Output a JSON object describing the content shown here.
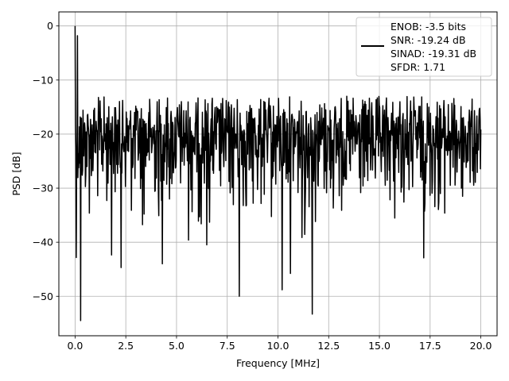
{
  "chart_data": {
    "type": "line",
    "title": "",
    "xlabel": "Frequency [MHz]",
    "ylabel": "PSD [dB]",
    "xlim": [
      -0.8,
      20.8
    ],
    "ylim": [
      -57.3,
      2.6
    ],
    "xticks": [
      0.0,
      2.5,
      5.0,
      7.5,
      10.0,
      12.5,
      15.0,
      17.5,
      20.0
    ],
    "xtick_labels": [
      "0.0",
      "2.5",
      "5.0",
      "7.5",
      "10.0",
      "12.5",
      "15.0",
      "17.5",
      "20.0"
    ],
    "yticks": [
      0,
      -10,
      -20,
      -30,
      -40,
      -50
    ],
    "ytick_labels": [
      "0",
      "−10",
      "−20",
      "−30",
      "−40",
      "−50"
    ],
    "grid": true,
    "legend_position": "upper right",
    "line_color": "#000000",
    "series": [
      {
        "name": "ENOB: -3.5 bits\nSNR: -19.24 dB\nSINAD: -19.31 dB\nSFDR: 1.71",
        "x_start": 0.0,
        "x_end": 20.0,
        "points": 1024,
        "peak_value": 0.0,
        "noise_floor_mean": -21.5,
        "noise_upper_envelope": -13.0,
        "notable_values": [
          {
            "x": 0.0,
            "y": 0.0
          },
          {
            "x": 0.12,
            "y": -1.8
          },
          {
            "x": 0.28,
            "y": -54.5
          },
          {
            "x": 4.3,
            "y": -44.0
          },
          {
            "x": 8.1,
            "y": -50.0
          },
          {
            "x": 11.7,
            "y": -53.3
          },
          {
            "x": 10.2,
            "y": -48.8
          }
        ]
      }
    ]
  },
  "legend": {
    "lines": [
      "ENOB: -3.5 bits",
      "SNR: -19.24 dB",
      "SINAD: -19.31 dB",
      "SFDR: 1.71"
    ]
  }
}
